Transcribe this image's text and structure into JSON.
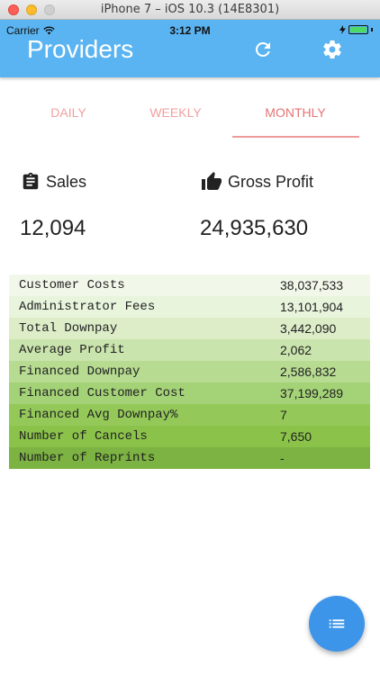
{
  "window": {
    "title": "iPhone 7 – iOS 10.3 (14E8301)"
  },
  "status_bar": {
    "carrier": "Carrier",
    "time": "3:12 PM"
  },
  "header": {
    "title": "Providers",
    "refresh_icon": "refresh-icon",
    "settings_icon": "gear-icon"
  },
  "tabs": [
    {
      "label": "DAILY",
      "active": false
    },
    {
      "label": "WEEKLY",
      "active": false
    },
    {
      "label": "MONTHLY",
      "active": true
    }
  ],
  "summary": {
    "sales": {
      "label": "Sales",
      "value": "12,094",
      "icon": "clipboard-icon"
    },
    "gross_profit": {
      "label": "Gross Profit",
      "value": "24,935,630",
      "icon": "thumbs-up-icon"
    }
  },
  "stats": [
    {
      "label": "Customer Costs",
      "value": "38,037,533",
      "color": "#f1f8e9"
    },
    {
      "label": "Administrator Fees",
      "value": "13,101,904",
      "color": "#e8f4dc"
    },
    {
      "label": "Total Downpay",
      "value": "3,442,090",
      "color": "#dcedc8"
    },
    {
      "label": "Average Profit",
      "value": "2,062",
      "color": "#c9e4ad"
    },
    {
      "label": "Financed Downpay",
      "value": "2,586,832",
      "color": "#b6db91"
    },
    {
      "label": "Financed Customer Cost",
      "value": "37,199,289",
      "color": "#a4d277"
    },
    {
      "label": "Financed Avg Downpay%",
      "value": "7",
      "color": "#94c95a"
    },
    {
      "label": "Number of Cancels",
      "value": "7,650",
      "color": "#8bc34a"
    },
    {
      "label": "Number of Reprints",
      "value": "-",
      "color": "#7cb342"
    }
  ],
  "fab": {
    "icon": "list-icon"
  },
  "colors": {
    "header": "#5ab4f1",
    "tab_active": "#e57373",
    "tab_inactive": "#f0a0a0",
    "fab": "#3d95ea"
  }
}
